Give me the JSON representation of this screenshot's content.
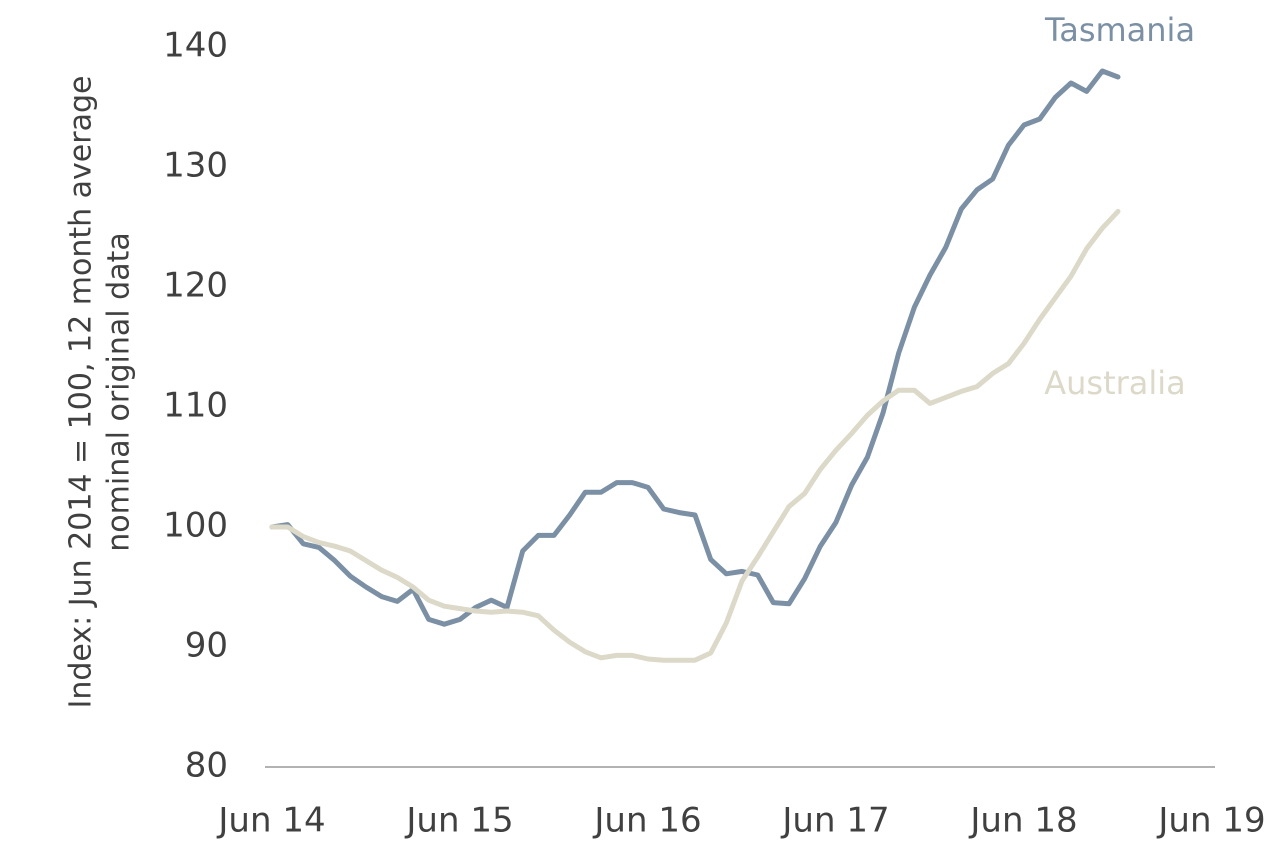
{
  "chart_data": {
    "type": "line",
    "y_label": [
      "Index: Jun 2014 = 100, 12 month average",
      "nominal original data"
    ],
    "x": [
      "2014-06",
      "2014-07",
      "2014-08",
      "2014-09",
      "2014-10",
      "2014-11",
      "2014-12",
      "2015-01",
      "2015-02",
      "2015-03",
      "2015-04",
      "2015-05",
      "2015-06",
      "2015-07",
      "2015-08",
      "2015-09",
      "2015-10",
      "2015-11",
      "2015-12",
      "2016-01",
      "2016-02",
      "2016-03",
      "2016-04",
      "2016-05",
      "2016-06",
      "2016-07",
      "2016-08",
      "2016-09",
      "2016-10",
      "2016-11",
      "2016-12",
      "2017-01",
      "2017-02",
      "2017-03",
      "2017-04",
      "2017-05",
      "2017-06",
      "2017-07",
      "2017-08",
      "2017-09",
      "2017-10",
      "2017-11",
      "2017-12",
      "2018-01",
      "2018-02",
      "2018-03",
      "2018-04",
      "2018-05",
      "2018-06",
      "2018-07",
      "2018-08",
      "2018-09",
      "2018-10",
      "2018-11",
      "2018-12"
    ],
    "series": [
      {
        "name": "Tasmania",
        "color": "#7b8fa5",
        "values": [
          100,
          100.2,
          98.6,
          98.3,
          97.2,
          95.9,
          95,
          94.2,
          93.8,
          94.8,
          92.3,
          91.9,
          92.3,
          93.3,
          93.9,
          93.3,
          98,
          99.3,
          99.3,
          101,
          102.9,
          102.9,
          103.7,
          103.7,
          103.3,
          101.5,
          101.2,
          101,
          97.3,
          96.1,
          96.3,
          96,
          93.7,
          93.6,
          95.7,
          98.4,
          100.4,
          103.5,
          105.8,
          109.5,
          114.5,
          118.3,
          121,
          123.3,
          126.5,
          128.1,
          129,
          131.8,
          133.5,
          134,
          135.8,
          137,
          136.3,
          138,
          137.5
        ]
      },
      {
        "name": "Australia",
        "color": "#dcd9c9",
        "values": [
          100,
          100,
          99.2,
          98.7,
          98.4,
          98,
          97.2,
          96.4,
          95.8,
          95,
          93.9,
          93.4,
          93.2,
          93,
          92.9,
          93,
          92.9,
          92.6,
          91.4,
          90.4,
          89.6,
          89.1,
          89.3,
          89.3,
          89,
          88.9,
          88.9,
          88.9,
          89.5,
          92,
          95.5,
          97.5,
          99.6,
          101.7,
          102.8,
          104.8,
          106.4,
          107.8,
          109.3,
          110.5,
          111.4,
          111.4,
          110.3,
          110.8,
          111.3,
          111.7,
          112.8,
          113.6,
          115.3,
          117.3,
          119.1,
          120.9,
          123.2,
          124.9,
          126.3
        ]
      }
    ],
    "xlim": [
      "2014-06",
      "2019-06"
    ],
    "xticks": [
      {
        "value": "2014-06",
        "label": "Jun 14"
      },
      {
        "value": "2015-06",
        "label": "Jun 15"
      },
      {
        "value": "2016-06",
        "label": "Jun 16"
      },
      {
        "value": "2017-06",
        "label": "Jun 17"
      },
      {
        "value": "2018-06",
        "label": "Jun 18"
      },
      {
        "value": "2019-06",
        "label": "Jun 19"
      }
    ],
    "ylim": [
      80,
      140
    ],
    "yticks": [
      80,
      90,
      100,
      110,
      120,
      130,
      140
    ],
    "grid": false
  }
}
